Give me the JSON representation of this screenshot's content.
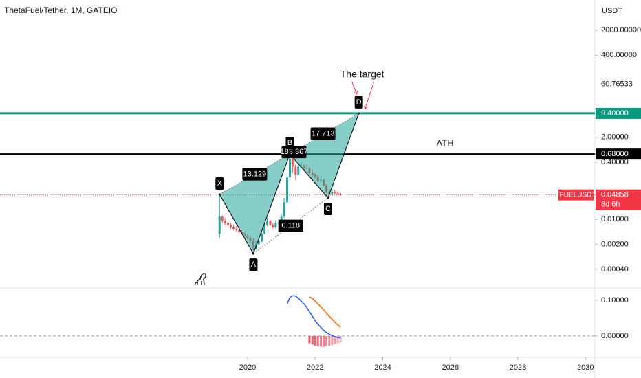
{
  "chart_data": [
    {
      "type": "candlestick",
      "title": "ThetaFuel/Tether, 1M, GATEIO",
      "y_unit": "USDT",
      "log_scale": true,
      "grid": false,
      "up_color": "#26a69a",
      "down_color": "#ef5350",
      "x": [
        2019.17,
        2019.25,
        2019.33,
        2019.42,
        2019.5,
        2019.58,
        2019.67,
        2019.75,
        2019.83,
        2019.92,
        2020.0,
        2020.08,
        2020.17,
        2020.25,
        2020.33,
        2020.42,
        2020.5,
        2020.58,
        2020.67,
        2020.75,
        2020.83,
        2020.92,
        2021.0,
        2021.08,
        2021.17,
        2021.25,
        2021.33,
        2021.42,
        2021.5,
        2021.58,
        2021.67,
        2021.75,
        2021.83,
        2021.92,
        2022.0,
        2022.08,
        2022.17,
        2022.25,
        2022.33,
        2022.42,
        2022.5,
        2022.58,
        2022.67,
        2022.75
      ],
      "open": [
        0.004,
        0.012,
        0.009,
        0.008,
        0.007,
        0.006,
        0.0055,
        0.005,
        0.0045,
        0.004,
        0.0035,
        0.003,
        0.0025,
        0.0015,
        0.002,
        0.0025,
        0.004,
        0.007,
        0.009,
        0.007,
        0.006,
        0.008,
        0.008,
        0.012,
        0.03,
        0.15,
        0.5,
        0.3,
        0.18,
        0.3,
        0.3,
        0.28,
        0.27,
        0.2,
        0.18,
        0.16,
        0.12,
        0.13,
        0.09,
        0.06,
        0.05,
        0.06,
        0.055,
        0.052
      ],
      "high": [
        0.05,
        0.013,
        0.011,
        0.009,
        0.008,
        0.007,
        0.0065,
        0.006,
        0.005,
        0.0045,
        0.004,
        0.0035,
        0.003,
        0.0025,
        0.003,
        0.0045,
        0.008,
        0.011,
        0.01,
        0.008,
        0.0095,
        0.01,
        0.014,
        0.04,
        0.2,
        0.68,
        0.55,
        0.35,
        0.38,
        0.4,
        0.36,
        0.34,
        0.3,
        0.24,
        0.2,
        0.18,
        0.17,
        0.14,
        0.1,
        0.07,
        0.07,
        0.068,
        0.06,
        0.056
      ],
      "low": [
        0.003,
        0.008,
        0.007,
        0.006,
        0.0055,
        0.005,
        0.0045,
        0.004,
        0.0038,
        0.0033,
        0.0028,
        0.0022,
        0.0011,
        0.0014,
        0.0019,
        0.0023,
        0.0038,
        0.0065,
        0.0065,
        0.0055,
        0.0055,
        0.0072,
        0.0075,
        0.011,
        0.028,
        0.14,
        0.2,
        0.13,
        0.17,
        0.25,
        0.24,
        0.24,
        0.18,
        0.16,
        0.14,
        0.11,
        0.11,
        0.085,
        0.055,
        0.042,
        0.045,
        0.05,
        0.048,
        0.046
      ],
      "close": [
        0.012,
        0.009,
        0.008,
        0.007,
        0.006,
        0.0055,
        0.005,
        0.0045,
        0.004,
        0.0035,
        0.003,
        0.0025,
        0.0015,
        0.002,
        0.0025,
        0.004,
        0.007,
        0.009,
        0.007,
        0.006,
        0.008,
        0.008,
        0.012,
        0.03,
        0.15,
        0.5,
        0.3,
        0.18,
        0.3,
        0.3,
        0.28,
        0.27,
        0.2,
        0.18,
        0.16,
        0.12,
        0.13,
        0.09,
        0.06,
        0.05,
        0.06,
        0.055,
        0.052,
        0.04858
      ],
      "xlim": [
        2012.67,
        2030.28
      ],
      "xticks": [
        2020,
        2022,
        2024,
        2026,
        2028,
        2030
      ],
      "ylim": [
        0.000126,
        14060
      ],
      "yticks": [
        {
          "value": 2000,
          "label": "2000.00000"
        },
        {
          "value": 400,
          "label": "400.00000"
        },
        {
          "value": 2,
          "label": "2.00000"
        },
        {
          "value": 0.4,
          "label": "0.40000"
        },
        {
          "value": 0.01,
          "label": "0.01000"
        },
        {
          "value": 0.002,
          "label": "0.00200"
        },
        {
          "value": 0.0004,
          "label": "0.00040"
        }
      ],
      "marker_labels": [
        {
          "value": 60.76533,
          "label": "60.76533"
        }
      ],
      "levels": [
        {
          "value": 9.4,
          "label": "9.40000",
          "color": "#089981"
        },
        {
          "value": 0.68,
          "label": "0.68000",
          "color": "#000000",
          "note": "ATH"
        }
      ],
      "last_price": {
        "symbol": "TFUELUSDT",
        "value": 0.04858,
        "label": "0.04858",
        "countdown": "8d 6h",
        "color": "#f23645"
      },
      "pattern": {
        "color": "#26a69a",
        "points": [
          {
            "name": "X",
            "x": 2019.17,
            "y": 0.05
          },
          {
            "name": "A",
            "x": 2020.17,
            "y": 0.0011
          },
          {
            "name": "B",
            "x": 2021.25,
            "y": 0.68
          },
          {
            "name": "C",
            "x": 2022.38,
            "y": 0.04
          },
          {
            "name": "D",
            "x": 2023.29,
            "y": 9.4
          }
        ],
        "ratios": [
          "13.129",
          "183.367",
          "17.713",
          "0.118"
        ]
      },
      "annotation": {
        "text": "The target",
        "color": "#f23645"
      }
    },
    {
      "type": "line",
      "grid": false,
      "zero_line": true,
      "series": [
        {
          "color": "#2962ff",
          "x": [
            2021.17,
            2021.25,
            2021.33,
            2021.42,
            2021.5,
            2021.58,
            2021.67,
            2021.75,
            2021.83,
            2021.92,
            2022.0,
            2022.08,
            2022.17,
            2022.25,
            2022.33,
            2022.42,
            2022.5,
            2022.58,
            2022.67,
            2022.75
          ],
          "values": [
            0.09,
            0.108,
            0.113,
            0.112,
            0.106,
            0.098,
            0.09,
            0.08,
            0.068,
            0.055,
            0.043,
            0.033,
            0.024,
            0.016,
            0.01,
            0.005,
            0.001,
            -0.002,
            -0.004,
            -0.005
          ]
        },
        {
          "color": "#ff6d00",
          "x": [
            2021.83,
            2021.92,
            2022.0,
            2022.08,
            2022.17,
            2022.25,
            2022.33,
            2022.42,
            2022.5,
            2022.58,
            2022.67,
            2022.75
          ],
          "values": [
            0.11,
            0.105,
            0.098,
            0.09,
            0.082,
            0.073,
            0.064,
            0.055,
            0.047,
            0.039,
            0.031,
            0.025
          ]
        }
      ],
      "histogram": {
        "color": "#f7525f",
        "x": [
          2021.83,
          2021.92,
          2022.0,
          2022.08,
          2022.17,
          2022.25,
          2022.33,
          2022.42,
          2022.5,
          2022.58,
          2022.67,
          2022.75
        ],
        "values": [
          -0.02,
          -0.024,
          -0.027,
          -0.029,
          -0.03,
          -0.03,
          -0.029,
          -0.027,
          -0.025,
          -0.022,
          -0.02,
          -0.018
        ]
      },
      "ylim": [
        -0.0596,
        0.1327
      ],
      "yticks": [
        {
          "value": 0.1,
          "label": "0.10000"
        },
        {
          "value": 0,
          "label": "0.00000"
        }
      ]
    }
  ]
}
